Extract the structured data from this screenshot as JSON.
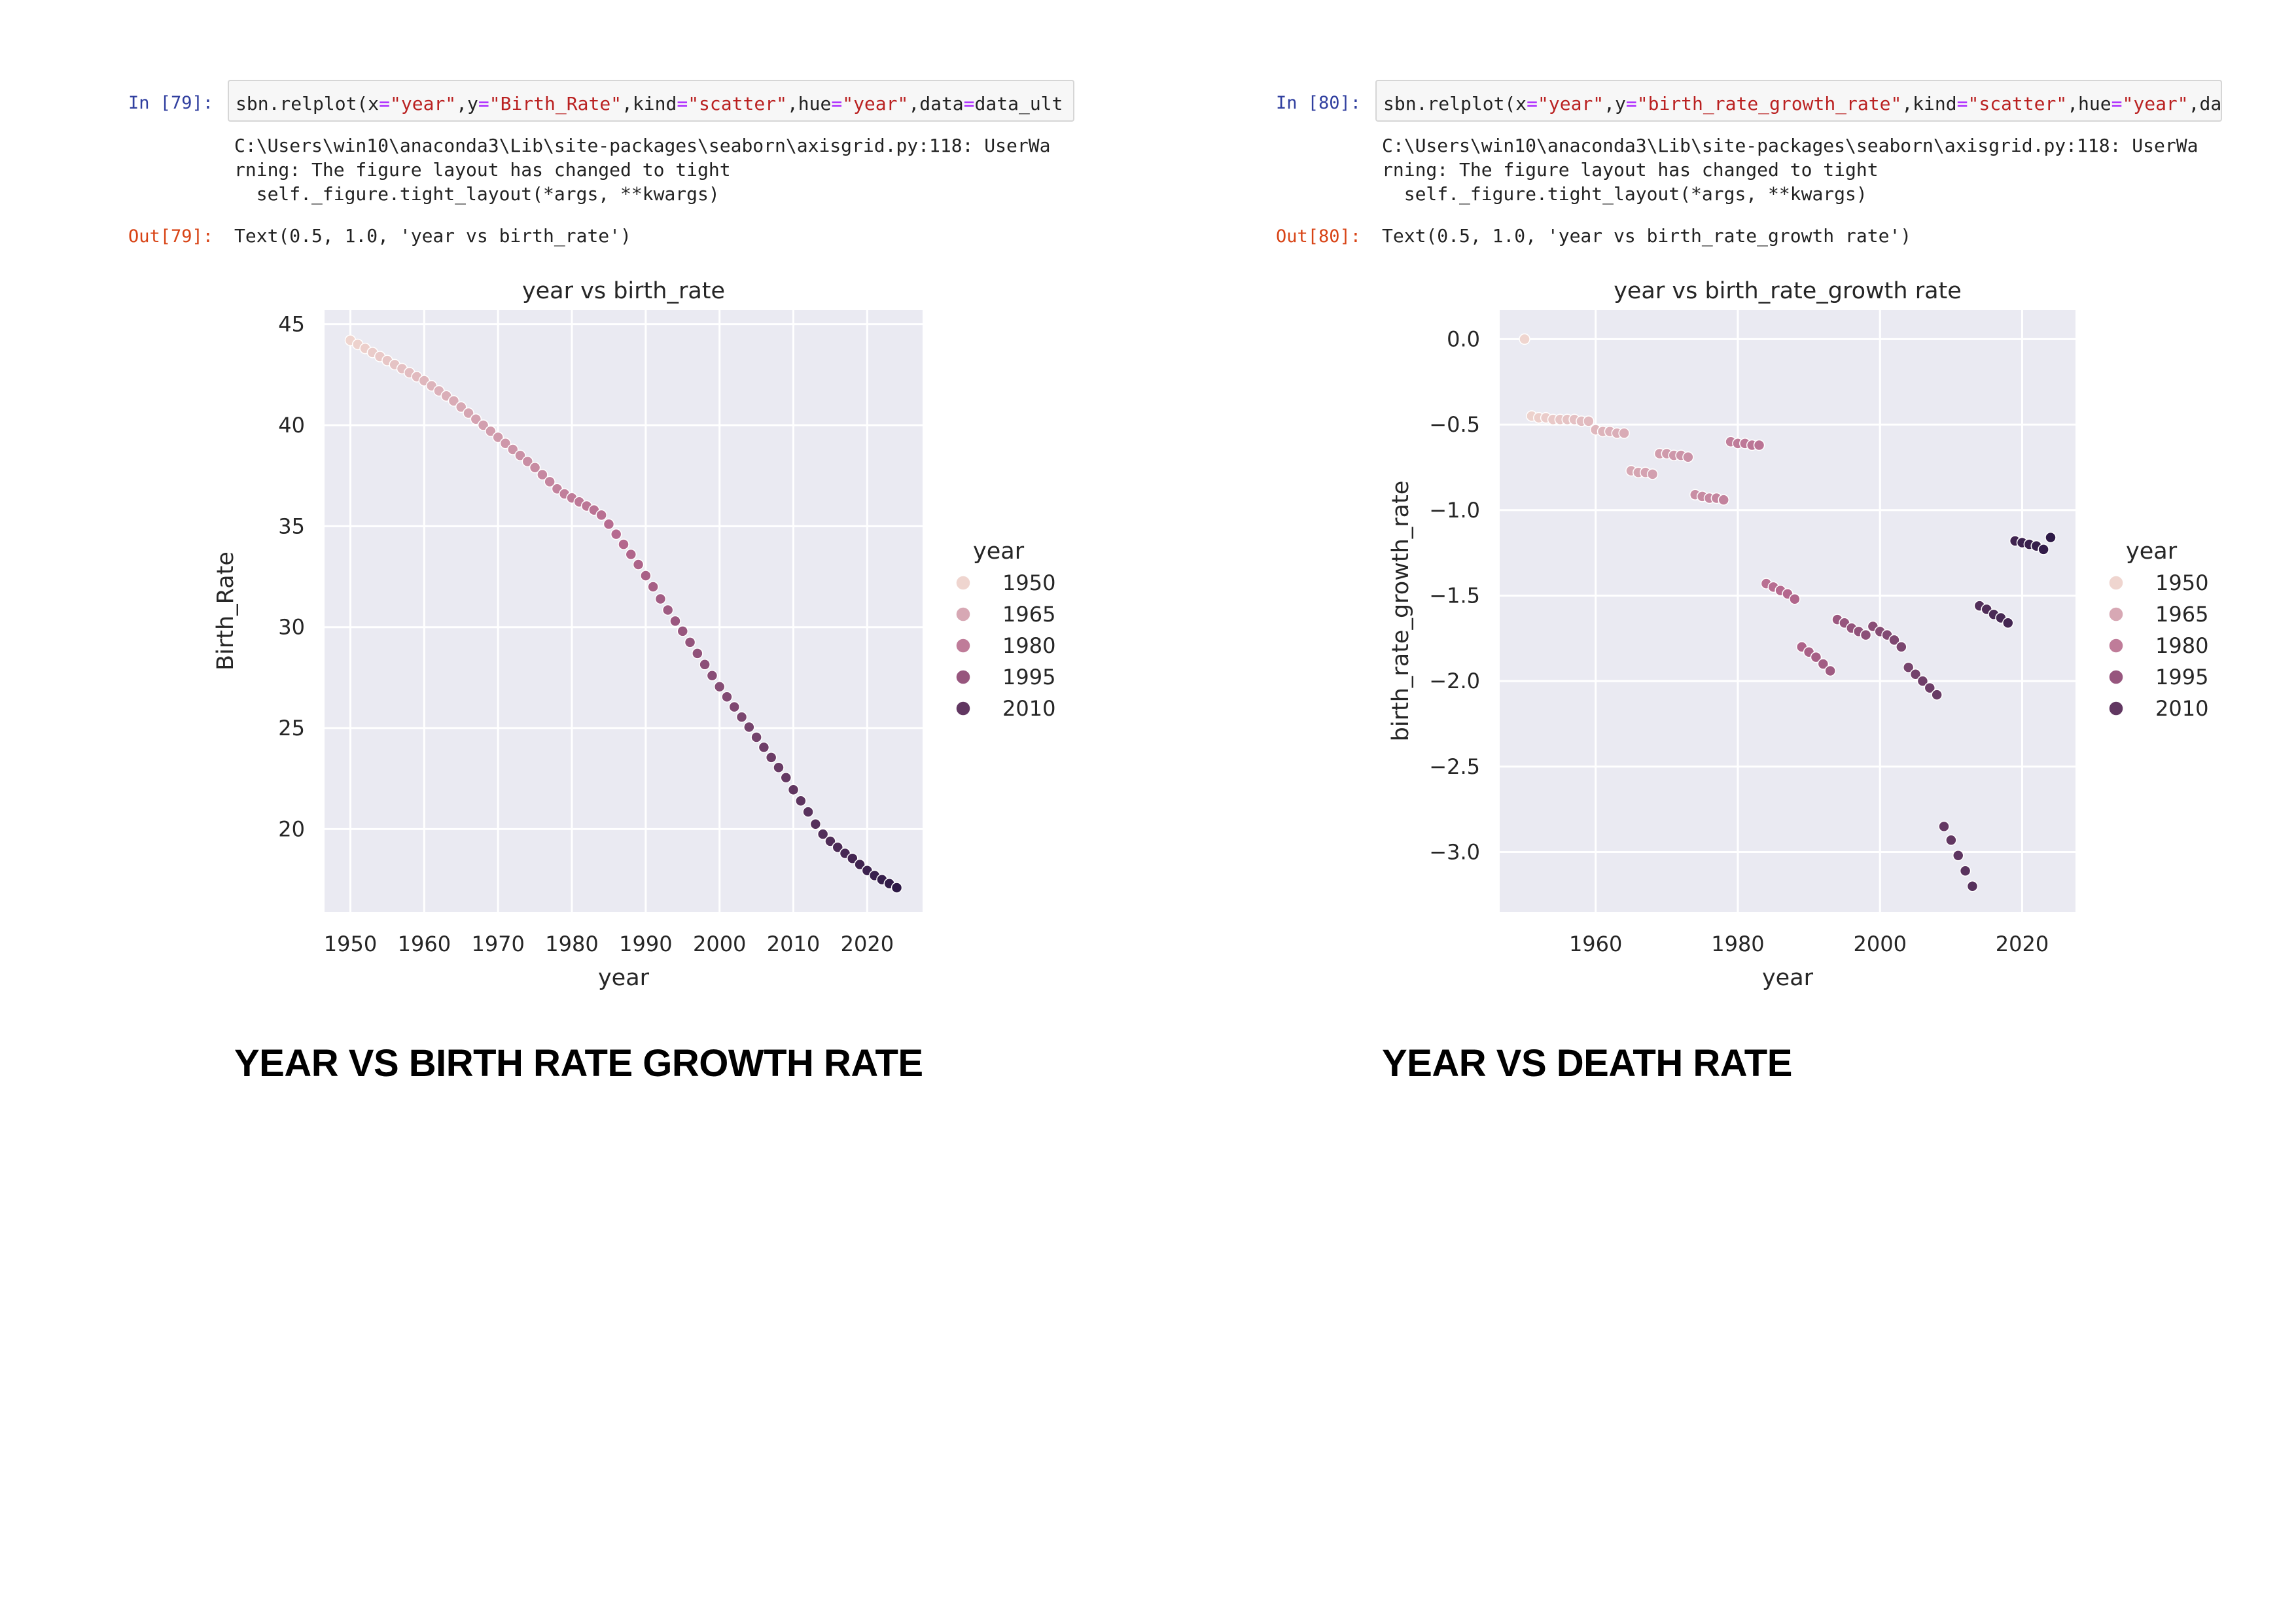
{
  "cells": [
    {
      "in_prompt": "In [79]:",
      "code_parts": [
        {
          "t": "sbn.relplot(x",
          "c": ""
        },
        {
          "t": "=",
          "c": "op"
        },
        {
          "t": "\"year\"",
          "c": "str"
        },
        {
          "t": ",y",
          "c": ""
        },
        {
          "t": "=",
          "c": "op"
        },
        {
          "t": "\"Birth_Rate\"",
          "c": "str"
        },
        {
          "t": ",kind",
          "c": ""
        },
        {
          "t": "=",
          "c": "op"
        },
        {
          "t": "\"scatter\"",
          "c": "str"
        },
        {
          "t": ",hue",
          "c": ""
        },
        {
          "t": "=",
          "c": "op"
        },
        {
          "t": "\"year\"",
          "c": "str"
        },
        {
          "t": ",data",
          "c": ""
        },
        {
          "t": "=",
          "c": "op"
        },
        {
          "t": "data_ult",
          "c": ""
        }
      ],
      "stderr": "C:\\Users\\win10\\anaconda3\\Lib\\site-packages\\seaborn\\axisgrid.py:118: UserWa\nrning: The figure layout has changed to tight\n  self._figure.tight_layout(*args, **kwargs)",
      "out_prompt": "Out[79]:",
      "out_text": "Text(0.5, 1.0, 'year vs birth_rate')",
      "heading": "YEAR VS BIRTH RATE GROWTH RATE"
    },
    {
      "in_prompt": "In [80]:",
      "code_parts": [
        {
          "t": "sbn.relplot(x",
          "c": ""
        },
        {
          "t": "=",
          "c": "op"
        },
        {
          "t": "\"year\"",
          "c": "str"
        },
        {
          "t": ",y",
          "c": ""
        },
        {
          "t": "=",
          "c": "op"
        },
        {
          "t": "\"birth_rate_growth_rate\"",
          "c": "str"
        },
        {
          "t": ",kind",
          "c": ""
        },
        {
          "t": "=",
          "c": "op"
        },
        {
          "t": "\"scatter\"",
          "c": "str"
        },
        {
          "t": ",hue",
          "c": ""
        },
        {
          "t": "=",
          "c": "op"
        },
        {
          "t": "\"year\"",
          "c": "str"
        },
        {
          "t": ",da",
          "c": ""
        }
      ],
      "stderr": "C:\\Users\\win10\\anaconda3\\Lib\\site-packages\\seaborn\\axisgrid.py:118: UserWa\nrning: The figure layout has changed to tight\n  self._figure.tight_layout(*args, **kwargs)",
      "out_prompt": "Out[80]:",
      "out_text": "Text(0.5, 1.0, 'year vs birth_rate_growth rate')",
      "heading": "YEAR VS DEATH RATE"
    }
  ],
  "colors": {
    "plot_bg": "#eaeaf2",
    "grid": "#ffffff",
    "text": "#262626",
    "hue_start": "#efd5cf",
    "hue_mid": "#b4678d",
    "hue_end": "#2e1a47"
  },
  "chart_data": [
    {
      "type": "scatter",
      "title": "year vs birth_rate",
      "xlabel": "year",
      "ylabel": "Birth_Rate",
      "xlim": [
        1946.5,
        2027.5
      ],
      "ylim": [
        15.9,
        45.7
      ],
      "xticks": [
        1950,
        1960,
        1970,
        1980,
        1990,
        2000,
        2010,
        2020
      ],
      "yticks": [
        20,
        25,
        30,
        35,
        40,
        45
      ],
      "grid": true,
      "hue": "year",
      "hue_range": [
        1950,
        2024
      ],
      "legend": {
        "title": "year",
        "position": "right",
        "entries": [
          "1950",
          "1965",
          "1980",
          "1995",
          "2010"
        ]
      },
      "x": [
        1950,
        1951,
        1952,
        1953,
        1954,
        1955,
        1956,
        1957,
        1958,
        1959,
        1960,
        1961,
        1962,
        1963,
        1964,
        1965,
        1966,
        1967,
        1968,
        1969,
        1970,
        1971,
        1972,
        1973,
        1974,
        1975,
        1976,
        1977,
        1978,
        1979,
        1980,
        1981,
        1982,
        1983,
        1984,
        1985,
        1986,
        1987,
        1988,
        1989,
        1990,
        1991,
        1992,
        1993,
        1994,
        1995,
        1996,
        1997,
        1998,
        1999,
        2000,
        2001,
        2002,
        2003,
        2004,
        2005,
        2006,
        2007,
        2008,
        2009,
        2010,
        2011,
        2012,
        2013,
        2014,
        2015,
        2016,
        2017,
        2018,
        2019,
        2020,
        2021,
        2022,
        2023,
        2024
      ],
      "y": [
        44.2,
        44.0,
        43.8,
        43.6,
        43.4,
        43.2,
        43.0,
        42.8,
        42.6,
        42.4,
        42.2,
        41.95,
        41.7,
        41.45,
        41.2,
        40.9,
        40.6,
        40.3,
        40.0,
        39.7,
        39.4,
        39.1,
        38.8,
        38.5,
        38.2,
        37.9,
        37.55,
        37.2,
        36.85,
        36.6,
        36.4,
        36.2,
        36.0,
        35.8,
        35.55,
        35.1,
        34.6,
        34.1,
        33.6,
        33.1,
        32.55,
        32.0,
        31.4,
        30.85,
        30.3,
        29.8,
        29.25,
        28.7,
        28.15,
        27.6,
        27.05,
        26.55,
        26.05,
        25.55,
        25.05,
        24.55,
        24.05,
        23.55,
        23.05,
        22.55,
        21.95,
        21.4,
        20.85,
        20.25,
        19.75,
        19.4,
        19.1,
        18.8,
        18.55,
        18.25,
        17.95,
        17.7,
        17.5,
        17.3,
        17.1
      ]
    },
    {
      "type": "scatter",
      "title": "year vs birth_rate_growth rate",
      "xlabel": "year",
      "ylabel": "birth_rate_growth_rate",
      "xlim": [
        1946.5,
        2027.5
      ],
      "ylim": [
        -3.35,
        0.17
      ],
      "xticks": [
        1960,
        1980,
        2000,
        2020
      ],
      "yticks": [
        0.0,
        -0.5,
        -1.0,
        -1.5,
        -2.0,
        -2.5,
        -3.0
      ],
      "ytick_labels": [
        "0.0",
        "−0.5",
        "−1.0",
        "−1.5",
        "−2.0",
        "−2.5",
        "−3.0"
      ],
      "grid": true,
      "hue": "year",
      "hue_range": [
        1950,
        2024
      ],
      "legend": {
        "title": "year",
        "position": "right",
        "entries": [
          "1950",
          "1965",
          "1980",
          "1995",
          "2010"
        ]
      },
      "x": [
        1950,
        1951,
        1952,
        1953,
        1954,
        1955,
        1956,
        1957,
        1958,
        1959,
        1960,
        1961,
        1962,
        1963,
        1964,
        1965,
        1966,
        1967,
        1968,
        1969,
        1970,
        1971,
        1972,
        1973,
        1974,
        1975,
        1976,
        1977,
        1978,
        1979,
        1980,
        1981,
        1982,
        1983,
        1984,
        1985,
        1986,
        1987,
        1988,
        1989,
        1990,
        1991,
        1992,
        1993,
        1994,
        1995,
        1996,
        1997,
        1998,
        1999,
        2000,
        2001,
        2002,
        2003,
        2004,
        2005,
        2006,
        2007,
        2008,
        2009,
        2010,
        2011,
        2012,
        2013,
        2014,
        2015,
        2016,
        2017,
        2018,
        2019,
        2020,
        2021,
        2022,
        2023,
        2024
      ],
      "y": [
        0.0,
        -0.45,
        -0.46,
        -0.46,
        -0.47,
        -0.47,
        -0.47,
        -0.47,
        -0.48,
        -0.48,
        -0.53,
        -0.54,
        -0.54,
        -0.55,
        -0.55,
        -0.77,
        -0.78,
        -0.78,
        -0.79,
        -0.67,
        -0.67,
        -0.68,
        -0.68,
        -0.69,
        -0.91,
        -0.92,
        -0.93,
        -0.93,
        -0.94,
        -0.6,
        -0.61,
        -0.61,
        -0.62,
        -0.62,
        -1.43,
        -1.45,
        -1.47,
        -1.49,
        -1.52,
        -1.8,
        -1.83,
        -1.86,
        -1.9,
        -1.94,
        -1.64,
        -1.66,
        -1.69,
        -1.71,
        -1.73,
        -1.68,
        -1.71,
        -1.73,
        -1.76,
        -1.8,
        -1.92,
        -1.96,
        -2.0,
        -2.04,
        -2.08,
        -2.85,
        -2.93,
        -3.02,
        -3.11,
        -3.2,
        -1.56,
        -1.58,
        -1.61,
        -1.63,
        -1.66,
        -1.18,
        -1.19,
        -1.2,
        -1.21,
        -1.23,
        -1.16
      ]
    }
  ]
}
